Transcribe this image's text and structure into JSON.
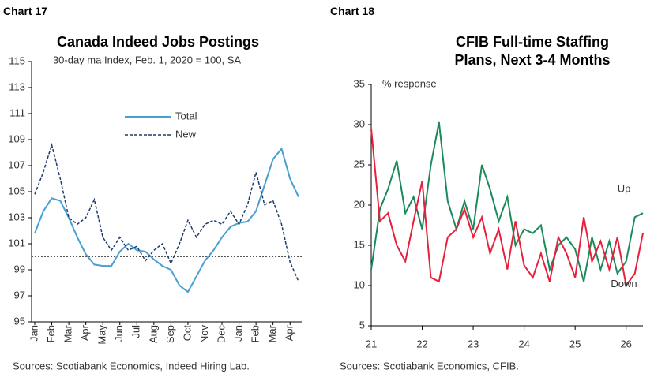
{
  "chart_data": [
    {
      "type": "line",
      "label": "Chart 17",
      "title": "Canada Indeed Jobs Postings",
      "subtitle": "30-day ma Index, Feb. 1, 2020 = 100, SA",
      "source": "Sources: Scotiabank Economics, Indeed Hiring Lab.",
      "categories": [
        "Jan",
        null,
        "Feb",
        null,
        "Mar",
        null,
        "Apr",
        null,
        "May",
        null,
        "Jun",
        null,
        "Jul",
        null,
        "Aug",
        null,
        "Sep",
        null,
        "Oct",
        null,
        "Nov",
        null,
        "Dec",
        null,
        "Jan",
        null,
        "Feb",
        null,
        "Mar",
        null,
        "Apr",
        null
      ],
      "series": [
        {
          "name": "Total",
          "color": "#4a9fd0",
          "style": "solid",
          "values": [
            101.8,
            103.5,
            104.5,
            104.3,
            103,
            101.5,
            100.2,
            99.4,
            99.3,
            99.3,
            100.4,
            101,
            100.5,
            100.4,
            99.8,
            99.3,
            99,
            97.8,
            97.3,
            98.5,
            99.7,
            100.5,
            101.5,
            102.3,
            102.6,
            102.7,
            103.5,
            105.5,
            107.5,
            108.3,
            106,
            104.6
          ]
        },
        {
          "name": "New",
          "color": "#1f3a6e",
          "style": "dashed",
          "values": [
            104.8,
            106.5,
            108.6,
            106,
            103,
            102.5,
            103,
            104.4,
            101.5,
            100.5,
            101.5,
            100.5,
            100.8,
            99.7,
            100.5,
            101,
            99.5,
            101,
            102.8,
            101.5,
            102.5,
            102.8,
            102.5,
            103.5,
            102.5,
            104,
            106.5,
            104,
            104.3,
            102.5,
            99.6,
            98.1
          ]
        }
      ],
      "reference_line": 100,
      "ylim": [
        95,
        115
      ],
      "yticks": [
        95,
        97,
        99,
        101,
        103,
        105,
        107,
        109,
        111,
        113,
        115
      ],
      "legend": "upper center"
    },
    {
      "type": "line",
      "label": "Chart 18",
      "title": "CFIB Full-time Staffing Plans, Next 3-4 Months",
      "y_label": "% response",
      "source": "Sources: Scotiabank Economics, CFIB.",
      "x": [
        21.0,
        21.17,
        21.33,
        21.5,
        21.67,
        21.83,
        22.0,
        22.17,
        22.33,
        22.5,
        22.67,
        22.83,
        23.0,
        23.17,
        23.33,
        23.5,
        23.67,
        23.83,
        24.0,
        24.17,
        24.33,
        24.5,
        24.67,
        24.83,
        25.0,
        25.17,
        25.33,
        25.5,
        25.67,
        25.83,
        26.0,
        26.17,
        26.33
      ],
      "series": [
        {
          "name": "Up",
          "color": "#1a8a5a",
          "style": "solid",
          "values": [
            12,
            19.5,
            22,
            25.5,
            19,
            21,
            17,
            25,
            30.3,
            20.5,
            17,
            20.5,
            17,
            25,
            22,
            18,
            21,
            15,
            17,
            16.5,
            17.5,
            12,
            15,
            16,
            14.5,
            10.5,
            16,
            12,
            15.5,
            11.5,
            13,
            18.5,
            19
          ]
        },
        {
          "name": "Down",
          "color": "#e8203c",
          "style": "solid",
          "values": [
            29.5,
            18,
            19,
            15,
            13,
            18,
            23,
            11,
            10.5,
            16,
            17,
            19.5,
            16,
            18.5,
            14,
            17,
            12,
            18,
            12.5,
            11,
            14,
            10.5,
            16,
            14,
            11,
            18.5,
            13,
            15.5,
            12,
            16,
            10,
            11.5,
            16.5
          ]
        }
      ],
      "xlim": [
        21,
        26.33
      ],
      "xticks": [
        21,
        22,
        23,
        24,
        25,
        26
      ],
      "ylim": [
        5,
        35
      ],
      "yticks": [
        5,
        10,
        15,
        20,
        25,
        30,
        35
      ],
      "legend": "direct"
    }
  ]
}
